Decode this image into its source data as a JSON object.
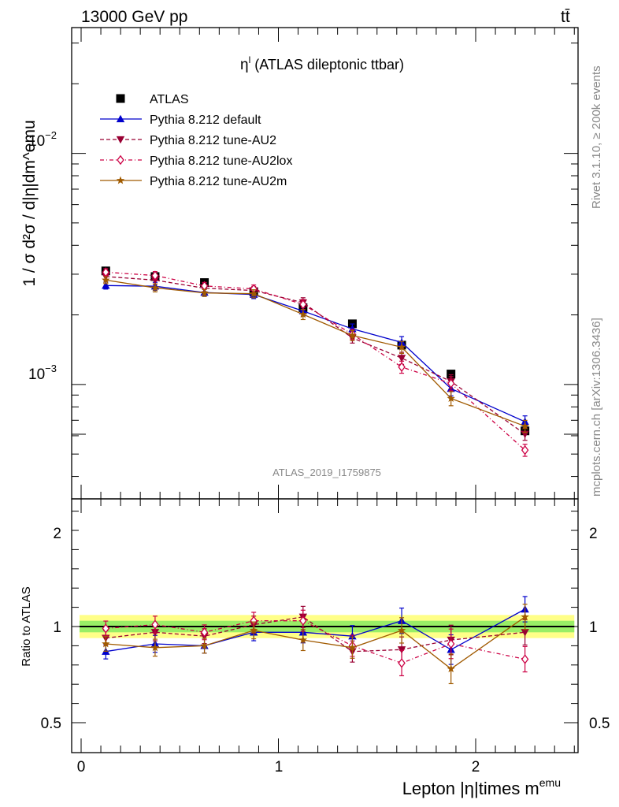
{
  "header": {
    "left_label": "13000 GeV pp",
    "right_label": "tt̄",
    "rivet_label": "Rivet 3.1.10, ≥ 200k events",
    "mcplots_label": "mcplots.cern.ch [arXiv:1306.3436]",
    "watermark": "ATLAS_2019_I1759875"
  },
  "plot_title": {
    "symbol": "η",
    "superscript": "l",
    "text": " (ATLAS dileptonic ttbar)"
  },
  "upper_ylabel": "1 / σ d²σ / d|η|dm^emu",
  "upper_ytick_labels": [
    {
      "value": 0.01,
      "base": "10",
      "exp": "−2"
    },
    {
      "value": 0.001,
      "base": "10",
      "exp": "−3"
    }
  ],
  "ratio_ylabel": "Ratio to ATLAS",
  "ratio_ytick_labels": [
    {
      "value": 2,
      "text": "2"
    },
    {
      "value": 1,
      "text": "1"
    },
    {
      "value": 0.5,
      "text": "0.5"
    }
  ],
  "xlabel": {
    "main": "Lepton |η|times m",
    "sup": "emu"
  },
  "xtick_labels": [
    {
      "value": 0,
      "text": "0"
    },
    {
      "value": 1,
      "text": "1"
    },
    {
      "value": 2,
      "text": "2"
    }
  ],
  "chart_data": [
    {
      "type": "line",
      "title": "η^l (ATLAS dileptonic ttbar)",
      "xlabel": "Lepton |η|times m^emu",
      "ylabel": "1 / σ d²σ / d|η|dm^emu",
      "yscale": "log",
      "xlim": [
        -0.1,
        2.55
      ],
      "ylim": [
        0.00032,
        0.035
      ],
      "x": [
        0.125,
        0.375,
        0.625,
        0.875,
        1.125,
        1.375,
        1.625,
        1.875,
        2.25
      ],
      "series": [
        {
          "name": "ATLAS",
          "color": "#000000",
          "marker": "square",
          "dash": "none",
          "values": [
            0.0031,
            0.00293,
            0.00276,
            0.00252,
            0.00215,
            0.00183,
            0.00148,
            0.00111,
            0.00063
          ]
        },
        {
          "name": "Pythia 8.212 default",
          "color": "#0000cc",
          "marker": "triangle-up",
          "dash": "solid",
          "values": [
            0.00268,
            0.00266,
            0.0025,
            0.00245,
            0.00208,
            0.00174,
            0.00152,
            0.00096,
            0.00069
          ]
        },
        {
          "name": "Pythia 8.212 tune-AU2",
          "color": "#990033",
          "marker": "triangle-down",
          "dash": "dashed",
          "values": [
            0.00293,
            0.00283,
            0.00261,
            0.00255,
            0.00226,
            0.00159,
            0.0013,
            0.00103,
            0.00061
          ]
        },
        {
          "name": "Pythia 8.212 tune-AU2lox",
          "color": "#cc0044",
          "marker": "diamond-open",
          "dash": "dotdash",
          "values": [
            0.00306,
            0.00296,
            0.00267,
            0.00259,
            0.00222,
            0.00165,
            0.00119,
            0.00101,
            0.00052
          ]
        },
        {
          "name": "Pythia 8.212 tune-AU2m",
          "color": "#a05a00",
          "marker": "star",
          "dash": "solid",
          "values": [
            0.00283,
            0.00262,
            0.00249,
            0.00247,
            0.00201,
            0.00163,
            0.00145,
            0.00087,
            0.00066
          ]
        }
      ]
    },
    {
      "type": "line",
      "title": "Ratio to ATLAS",
      "ylabel": "Ratio to ATLAS",
      "ylim": [
        0.43,
        2.35
      ],
      "x": [
        0.125,
        0.375,
        0.625,
        0.875,
        1.125,
        1.375,
        1.625,
        1.875,
        2.25
      ],
      "reference_line": 1.0,
      "uncertainty_band": {
        "inner": 0.03,
        "outer": 0.06,
        "inner_color": "#99ee66",
        "outer_color": "#ffff88"
      },
      "series": [
        {
          "name": "Pythia 8.212 default",
          "values": [
            0.87,
            0.91,
            0.9,
            0.97,
            0.97,
            0.95,
            1.03,
            0.88,
            1.09
          ]
        },
        {
          "name": "Pythia 8.212 tune-AU2",
          "values": [
            0.94,
            0.97,
            0.95,
            1.01,
            1.05,
            0.87,
            0.88,
            0.93,
            0.97
          ]
        },
        {
          "name": "Pythia 8.212 tune-AU2lox",
          "values": [
            0.99,
            1.01,
            0.97,
            1.03,
            1.03,
            0.9,
            0.81,
            0.91,
            0.83
          ]
        },
        {
          "name": "Pythia 8.212 tune-AU2m",
          "values": [
            0.91,
            0.89,
            0.9,
            0.98,
            0.93,
            0.89,
            0.98,
            0.78,
            1.05
          ]
        }
      ]
    }
  ]
}
